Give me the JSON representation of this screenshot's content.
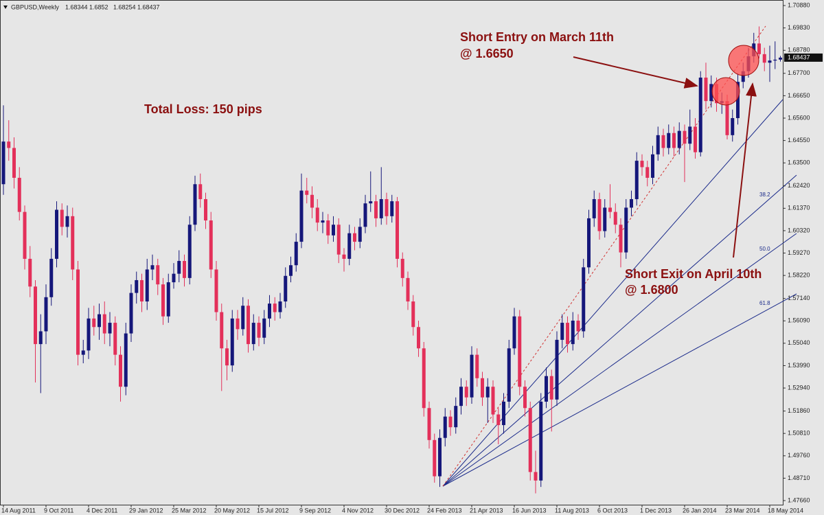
{
  "chart_data": {
    "type": "candlestick",
    "header": {
      "symbol": "GBPUSD,Weekly"
    },
    "categories": [
      "14 Aug 2011",
      null,
      null,
      null,
      null,
      null,
      null,
      null,
      "9 Oct 2011",
      null,
      null,
      null,
      null,
      null,
      null,
      null,
      "4 Dec 2011",
      null,
      null,
      null,
      null,
      null,
      null,
      null,
      "29 Jan 2012",
      null,
      null,
      null,
      null,
      null,
      null,
      null,
      "25 Mar 2012",
      null,
      null,
      null,
      null,
      null,
      null,
      null,
      "20 May 2012",
      null,
      null,
      null,
      null,
      null,
      null,
      null,
      "15 Jul 2012",
      null,
      null,
      null,
      null,
      null,
      null,
      null,
      "9 Sep 2012",
      null,
      null,
      null,
      null,
      null,
      null,
      null,
      "4 Nov 2012",
      null,
      null,
      null,
      null,
      null,
      null,
      null,
      "30 Dec 2012",
      null,
      null,
      null,
      null,
      null,
      null,
      null,
      "24 Feb 2013",
      null,
      null,
      null,
      null,
      null,
      null,
      null,
      "21 Apr 2013",
      null,
      null,
      null,
      null,
      null,
      null,
      null,
      "16 Jun 2013",
      null,
      null,
      null,
      null,
      null,
      null,
      null,
      "11 Aug 2013",
      null,
      null,
      null,
      null,
      null,
      null,
      null,
      "6 Oct 2013",
      null,
      null,
      null,
      null,
      null,
      null,
      null,
      "1 Dec 2013",
      null,
      null,
      null,
      null,
      null,
      null,
      null,
      "26 Jan 2014",
      null,
      null,
      null,
      null,
      null,
      null,
      null,
      "23 Mar 2014",
      null,
      null,
      null,
      null,
      null,
      null,
      null,
      "18 May 2014",
      null,
      null
    ],
    "candles": [
      [
        1.625,
        1.662,
        1.62,
        1.645
      ],
      [
        1.645,
        1.655,
        1.636,
        1.642
      ],
      [
        1.642,
        1.647,
        1.623,
        1.628
      ],
      [
        1.628,
        1.633,
        1.608,
        1.612
      ],
      [
        1.612,
        1.615,
        1.585,
        1.59
      ],
      [
        1.59,
        1.596,
        1.572,
        1.577
      ],
      [
        1.577,
        1.58,
        1.532,
        1.55
      ],
      [
        1.55,
        1.564,
        1.527,
        1.556
      ],
      [
        1.556,
        1.578,
        1.55,
        1.572
      ],
      [
        1.572,
        1.595,
        1.568,
        1.59
      ],
      [
        1.59,
        1.617,
        1.586,
        1.613
      ],
      [
        1.613,
        1.616,
        1.601,
        1.605
      ],
      [
        1.605,
        1.615,
        1.6,
        1.61
      ],
      [
        1.61,
        1.614,
        1.58,
        1.585
      ],
      [
        1.585,
        1.589,
        1.54,
        1.545
      ],
      [
        1.545,
        1.552,
        1.541,
        1.547
      ],
      [
        1.547,
        1.567,
        1.543,
        1.562
      ],
      [
        1.562,
        1.568,
        1.554,
        1.558
      ],
      [
        1.558,
        1.569,
        1.552,
        1.564
      ],
      [
        1.564,
        1.57,
        1.55,
        1.555
      ],
      [
        1.555,
        1.565,
        1.549,
        1.56
      ],
      [
        1.56,
        1.563,
        1.54,
        1.545
      ],
      [
        1.545,
        1.549,
        1.523,
        1.53
      ],
      [
        1.53,
        1.56,
        1.526,
        1.555
      ],
      [
        1.555,
        1.578,
        1.551,
        1.574
      ],
      [
        1.574,
        1.584,
        1.569,
        1.58
      ],
      [
        1.58,
        1.583,
        1.565,
        1.57
      ],
      [
        1.57,
        1.59,
        1.566,
        1.585
      ],
      [
        1.585,
        1.592,
        1.58,
        1.587
      ],
      [
        1.587,
        1.59,
        1.573,
        1.578
      ],
      [
        1.578,
        1.581,
        1.559,
        1.563
      ],
      [
        1.563,
        1.583,
        1.56,
        1.579
      ],
      [
        1.579,
        1.588,
        1.576,
        1.583
      ],
      [
        1.583,
        1.594,
        1.579,
        1.589
      ],
      [
        1.589,
        1.592,
        1.577,
        1.581
      ],
      [
        1.581,
        1.61,
        1.578,
        1.606
      ],
      [
        1.606,
        1.629,
        1.603,
        1.625
      ],
      [
        1.625,
        1.63,
        1.614,
        1.618
      ],
      [
        1.618,
        1.621,
        1.604,
        1.608
      ],
      [
        1.608,
        1.612,
        1.581,
        1.585
      ],
      [
        1.585,
        1.589,
        1.561,
        1.565
      ],
      [
        1.565,
        1.569,
        1.528,
        1.548
      ],
      [
        1.548,
        1.552,
        1.533,
        1.54
      ],
      [
        1.54,
        1.566,
        1.537,
        1.562
      ],
      [
        1.562,
        1.566,
        1.552,
        1.557
      ],
      [
        1.557,
        1.572,
        1.554,
        1.568
      ],
      [
        1.568,
        1.571,
        1.546,
        1.55
      ],
      [
        1.55,
        1.564,
        1.547,
        1.56
      ],
      [
        1.56,
        1.563,
        1.549,
        1.553
      ],
      [
        1.553,
        1.566,
        1.55,
        1.562
      ],
      [
        1.562,
        1.573,
        1.558,
        1.569
      ],
      [
        1.569,
        1.572,
        1.561,
        1.565
      ],
      [
        1.565,
        1.574,
        1.562,
        1.57
      ],
      [
        1.57,
        1.586,
        1.567,
        1.582
      ],
      [
        1.582,
        1.591,
        1.579,
        1.587
      ],
      [
        1.587,
        1.602,
        1.584,
        1.598
      ],
      [
        1.598,
        1.63,
        1.595,
        1.622
      ],
      [
        1.622,
        1.628,
        1.616,
        1.62
      ],
      [
        1.62,
        1.624,
        1.609,
        1.614
      ],
      [
        1.614,
        1.618,
        1.603,
        1.607
      ],
      [
        1.607,
        1.612,
        1.602,
        1.608
      ],
      [
        1.608,
        1.611,
        1.597,
        1.601
      ],
      [
        1.601,
        1.61,
        1.598,
        1.606
      ],
      [
        1.606,
        1.609,
        1.588,
        1.592
      ],
      [
        1.592,
        1.595,
        1.584,
        1.59
      ],
      [
        1.59,
        1.606,
        1.587,
        1.602
      ],
      [
        1.602,
        1.605,
        1.594,
        1.598
      ],
      [
        1.598,
        1.609,
        1.595,
        1.605
      ],
      [
        1.605,
        1.62,
        1.602,
        1.616
      ],
      [
        1.616,
        1.631,
        1.612,
        1.617
      ],
      [
        1.617,
        1.62,
        1.605,
        1.609
      ],
      [
        1.609,
        1.633,
        1.606,
        1.618
      ],
      [
        1.618,
        1.621,
        1.606,
        1.61
      ],
      [
        1.61,
        1.62,
        1.607,
        1.617
      ],
      [
        1.617,
        1.619,
        1.586,
        1.59
      ],
      [
        1.59,
        1.593,
        1.577,
        1.581
      ],
      [
        1.581,
        1.584,
        1.566,
        1.57
      ],
      [
        1.57,
        1.573,
        1.554,
        1.558
      ],
      [
        1.558,
        1.561,
        1.544,
        1.548
      ],
      [
        1.548,
        1.551,
        1.516,
        1.52
      ],
      [
        1.52,
        1.523,
        1.501,
        1.505
      ],
      [
        1.505,
        1.508,
        1.485,
        1.488
      ],
      [
        1.488,
        1.51,
        1.483,
        1.506
      ],
      [
        1.506,
        1.52,
        1.502,
        1.516
      ],
      [
        1.516,
        1.519,
        1.507,
        1.511
      ],
      [
        1.511,
        1.525,
        1.508,
        1.521
      ],
      [
        1.521,
        1.534,
        1.517,
        1.53
      ],
      [
        1.53,
        1.533,
        1.521,
        1.525
      ],
      [
        1.525,
        1.549,
        1.522,
        1.545
      ],
      [
        1.545,
        1.548,
        1.53,
        1.534
      ],
      [
        1.534,
        1.537,
        1.521,
        1.525
      ],
      [
        1.525,
        1.534,
        1.513,
        1.53
      ],
      [
        1.53,
        1.533,
        1.513,
        1.517
      ],
      [
        1.517,
        1.52,
        1.503,
        1.512
      ],
      [
        1.512,
        1.527,
        1.508,
        1.523
      ],
      [
        1.523,
        1.552,
        1.52,
        1.548
      ],
      [
        1.548,
        1.567,
        1.545,
        1.563
      ],
      [
        1.563,
        1.566,
        1.526,
        1.53
      ],
      [
        1.53,
        1.533,
        1.516,
        1.52
      ],
      [
        1.52,
        1.523,
        1.486,
        1.49
      ],
      [
        1.49,
        1.5,
        1.48,
        1.486
      ],
      [
        1.486,
        1.527,
        1.483,
        1.523
      ],
      [
        1.523,
        1.539,
        1.52,
        1.535
      ],
      [
        1.535,
        1.538,
        1.509,
        1.524
      ],
      [
        1.524,
        1.556,
        1.521,
        1.552
      ],
      [
        1.552,
        1.564,
        1.548,
        1.56
      ],
      [
        1.56,
        1.563,
        1.546,
        1.55
      ],
      [
        1.55,
        1.565,
        1.547,
        1.561
      ],
      [
        1.561,
        1.564,
        1.552,
        1.556
      ],
      [
        1.556,
        1.59,
        1.553,
        1.586
      ],
      [
        1.586,
        1.613,
        1.583,
        1.609
      ],
      [
        1.609,
        1.622,
        1.605,
        1.618
      ],
      [
        1.618,
        1.621,
        1.599,
        1.603
      ],
      [
        1.603,
        1.618,
        1.6,
        1.614
      ],
      [
        1.614,
        1.625,
        1.609,
        1.612
      ],
      [
        1.612,
        1.616,
        1.602,
        1.606
      ],
      [
        1.606,
        1.609,
        1.586,
        1.593
      ],
      [
        1.593,
        1.618,
        1.59,
        1.614
      ],
      [
        1.614,
        1.622,
        1.61,
        1.618
      ],
      [
        1.618,
        1.64,
        1.615,
        1.636
      ],
      [
        1.636,
        1.639,
        1.629,
        1.633
      ],
      [
        1.633,
        1.636,
        1.624,
        1.628
      ],
      [
        1.628,
        1.643,
        1.625,
        1.639
      ],
      [
        1.639,
        1.652,
        1.636,
        1.648
      ],
      [
        1.648,
        1.651,
        1.638,
        1.642
      ],
      [
        1.642,
        1.653,
        1.639,
        1.649
      ],
      [
        1.649,
        1.652,
        1.638,
        1.642
      ],
      [
        1.642,
        1.654,
        1.639,
        1.65
      ],
      [
        1.65,
        1.653,
        1.626,
        1.644
      ],
      [
        1.644,
        1.66,
        1.641,
        1.652
      ],
      [
        1.652,
        1.656,
        1.637,
        1.64
      ],
      [
        1.64,
        1.678,
        1.638,
        1.675
      ],
      [
        1.675,
        1.682,
        1.66,
        1.664
      ],
      [
        1.664,
        1.676,
        1.661,
        1.672
      ],
      [
        1.672,
        1.675,
        1.659,
        1.663
      ],
      [
        1.663,
        1.668,
        1.658,
        1.664
      ],
      [
        1.664,
        1.667,
        1.646,
        1.648
      ],
      [
        1.648,
        1.66,
        1.645,
        1.656
      ],
      [
        1.656,
        1.677,
        1.653,
        1.673
      ],
      [
        1.673,
        1.682,
        1.67,
        1.678
      ],
      [
        1.678,
        1.689,
        1.675,
        1.685
      ],
      [
        1.685,
        1.696,
        1.682,
        1.691
      ],
      [
        1.691,
        1.699,
        1.684,
        1.686
      ],
      [
        1.686,
        1.689,
        1.678,
        1.682
      ],
      [
        1.682,
        1.69,
        1.673,
        1.683
      ],
      [
        1.683,
        1.692,
        1.679,
        1.6834
      ],
      [
        1.68344,
        1.6852,
        1.68254,
        1.68437
      ]
    ],
    "ylim": [
      1.4737,
      1.7114
    ],
    "yticks": [
      {
        "value": 1.7088,
        "label": "1.70880"
      },
      {
        "value": 1.6983,
        "label": "1.69830"
      },
      {
        "value": 1.6878,
        "label": "1.68780"
      },
      {
        "value": 1.677,
        "label": "1.67700"
      },
      {
        "value": 1.6665,
        "label": "1.66650"
      },
      {
        "value": 1.656,
        "label": "1.65600"
      },
      {
        "value": 1.6455,
        "label": "1.64550"
      },
      {
        "value": 1.635,
        "label": "1.63500"
      },
      {
        "value": 1.6242,
        "label": "1.62420"
      },
      {
        "value": 1.6137,
        "label": "1.61370"
      },
      {
        "value": 1.6032,
        "label": "1.60320"
      },
      {
        "value": 1.5927,
        "label": "1.59270"
      },
      {
        "value": 1.5822,
        "label": "1.58220"
      },
      {
        "value": 1.5714,
        "label": "1.57140"
      },
      {
        "value": 1.5609,
        "label": "1.56090"
      },
      {
        "value": 1.5504,
        "label": "1.55040"
      },
      {
        "value": 1.5399,
        "label": "1.53990"
      },
      {
        "value": 1.5294,
        "label": "1.52940"
      },
      {
        "value": 1.5186,
        "label": "1.51860"
      },
      {
        "value": 1.5081,
        "label": "1.50810"
      },
      {
        "value": 1.4976,
        "label": "1.49760"
      },
      {
        "value": 1.4871,
        "label": "1.48710"
      },
      {
        "value": 1.4766,
        "label": "1.47660"
      }
    ],
    "up_color": "#15177a",
    "down_color": "#e3305a",
    "annotations": {
      "entry": [
        "Short Entry on March 11th",
        "@ 1.6650"
      ],
      "loss": "Total Loss: 150 pips",
      "exit": [
        "Short Exit on April 10th",
        "@ 1.6800"
      ],
      "fib": [
        "38.2",
        "50.0",
        "61.8"
      ]
    }
  }
}
